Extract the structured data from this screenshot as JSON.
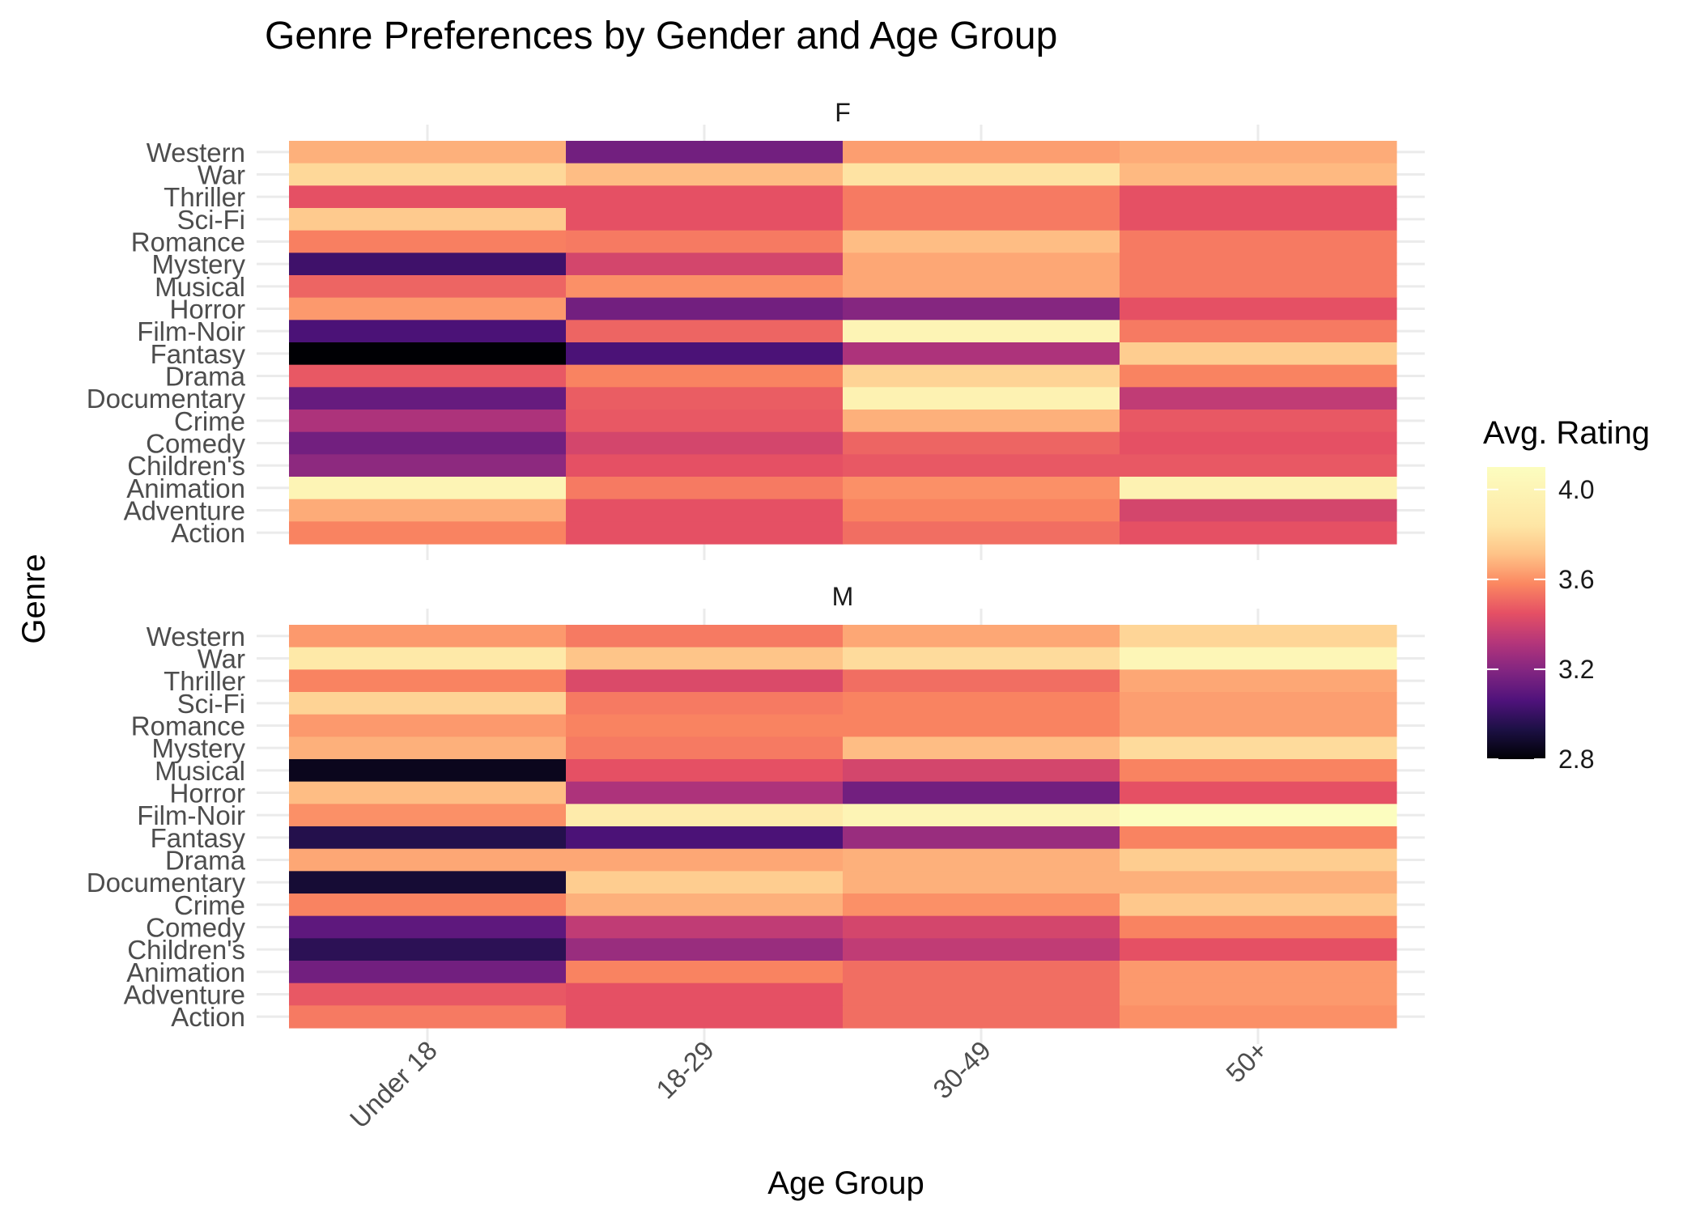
{
  "chart_data": {
    "type": "heatmap",
    "title": "Genre Preferences by Gender and Age Group",
    "xlabel": "Age Group",
    "ylabel": "Genre",
    "x_categories": [
      "Under 18",
      "18-29",
      "30-49",
      "50+"
    ],
    "y_categories": [
      "Western",
      "War",
      "Thriller",
      "Sci-Fi",
      "Romance",
      "Mystery",
      "Musical",
      "Horror",
      "Film-Noir",
      "Fantasy",
      "Drama",
      "Documentary",
      "Crime",
      "Comedy",
      "Children's",
      "Animation",
      "Adventure",
      "Action"
    ],
    "legend": {
      "title": "Avg. Rating",
      "position": "right",
      "ticks": [
        "4.0",
        "3.6",
        "3.2",
        "2.8"
      ],
      "min": 2.8,
      "max": 4.1
    },
    "colorscale": "magma",
    "panels": [
      {
        "name": "F",
        "values": [
          [
            3.67,
            3.15,
            3.63,
            3.66
          ],
          [
            3.79,
            3.7,
            3.83,
            3.69
          ],
          [
            3.45,
            3.45,
            3.55,
            3.45
          ],
          [
            3.74,
            3.45,
            3.55,
            3.45
          ],
          [
            3.56,
            3.55,
            3.7,
            3.55
          ],
          [
            3.02,
            3.4,
            3.65,
            3.55
          ],
          [
            3.5,
            3.6,
            3.65,
            3.55
          ],
          [
            3.62,
            3.15,
            3.2,
            3.45
          ],
          [
            3.05,
            3.5,
            4.0,
            3.55
          ],
          [
            2.8,
            3.05,
            3.3,
            3.75
          ],
          [
            3.47,
            3.57,
            3.77,
            3.57
          ],
          [
            3.12,
            3.48,
            3.97,
            3.35
          ],
          [
            3.3,
            3.47,
            3.67,
            3.47
          ],
          [
            3.15,
            3.4,
            3.5,
            3.45
          ],
          [
            3.22,
            3.45,
            3.47,
            3.47
          ],
          [
            4.0,
            3.55,
            3.6,
            3.97
          ],
          [
            3.66,
            3.45,
            3.57,
            3.4
          ],
          [
            3.57,
            3.45,
            3.52,
            3.45
          ]
        ]
      },
      {
        "name": "M",
        "values": [
          [
            3.62,
            3.55,
            3.65,
            3.78
          ],
          [
            3.87,
            3.72,
            3.8,
            4.02
          ],
          [
            3.57,
            3.42,
            3.52,
            3.65
          ],
          [
            3.77,
            3.55,
            3.57,
            3.63
          ],
          [
            3.62,
            3.57,
            3.57,
            3.63
          ],
          [
            3.67,
            3.55,
            3.7,
            3.8
          ],
          [
            2.85,
            3.45,
            3.4,
            3.57
          ],
          [
            3.7,
            3.3,
            3.15,
            3.45
          ],
          [
            3.6,
            3.9,
            4.0,
            4.1
          ],
          [
            2.95,
            3.05,
            3.25,
            3.57
          ],
          [
            3.65,
            3.65,
            3.67,
            3.75
          ],
          [
            2.9,
            3.75,
            3.67,
            3.67
          ],
          [
            3.57,
            3.67,
            3.6,
            3.73
          ],
          [
            3.1,
            3.35,
            3.4,
            3.57
          ],
          [
            2.97,
            3.25,
            3.35,
            3.45
          ],
          [
            3.15,
            3.57,
            3.52,
            3.62
          ],
          [
            3.47,
            3.45,
            3.52,
            3.62
          ],
          [
            3.55,
            3.45,
            3.52,
            3.6
          ]
        ]
      }
    ]
  }
}
